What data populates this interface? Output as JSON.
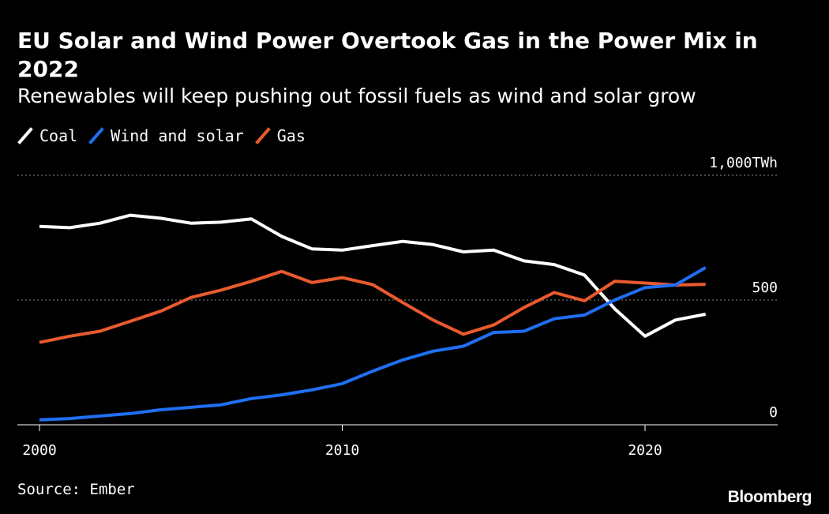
{
  "chart_data": {
    "type": "line",
    "title": "EU Solar and Wind Power Overtook Gas in the Power Mix in 2022",
    "subtitle": "Renewables will keep pushing out fossil fuels as wind and solar grow",
    "xlabel": "",
    "ylabel": "TWh",
    "ylim": [
      0,
      1000
    ],
    "xlim": [
      2000,
      2024
    ],
    "y_ticks": [
      {
        "value": 0,
        "label": "0"
      },
      {
        "value": 500,
        "label": "500"
      },
      {
        "value": 1000,
        "label": "1,000TWh"
      }
    ],
    "x_ticks": [
      {
        "value": 2000,
        "label": "2000"
      },
      {
        "value": 2010,
        "label": "2010"
      },
      {
        "value": 2020,
        "label": "2020"
      }
    ],
    "x": [
      2000,
      2001,
      2002,
      2003,
      2004,
      2005,
      2006,
      2007,
      2008,
      2009,
      2010,
      2011,
      2012,
      2013,
      2014,
      2015,
      2016,
      2017,
      2018,
      2019,
      2020,
      2021,
      2022
    ],
    "series": [
      {
        "name": "Coal",
        "color": "#ffffff",
        "values": [
          795,
          790,
          808,
          840,
          828,
          808,
          812,
          825,
          755,
          705,
          700,
          718,
          735,
          722,
          693,
          700,
          657,
          642,
          600,
          465,
          355,
          420,
          443
        ]
      },
      {
        "name": "Wind and solar",
        "color": "#1f6ff2",
        "values": [
          20,
          25,
          35,
          45,
          60,
          70,
          80,
          105,
          120,
          140,
          165,
          215,
          260,
          295,
          315,
          370,
          375,
          425,
          440,
          500,
          550,
          560,
          630
        ]
      },
      {
        "name": "Gas",
        "color": "#e95a2e",
        "values": [
          330,
          355,
          375,
          415,
          455,
          510,
          540,
          575,
          615,
          570,
          590,
          562,
          490,
          420,
          363,
          400,
          470,
          530,
          497,
          575,
          568,
          560,
          563
        ]
      }
    ]
  },
  "source": "Source: Ember",
  "brand": "Bloomberg"
}
